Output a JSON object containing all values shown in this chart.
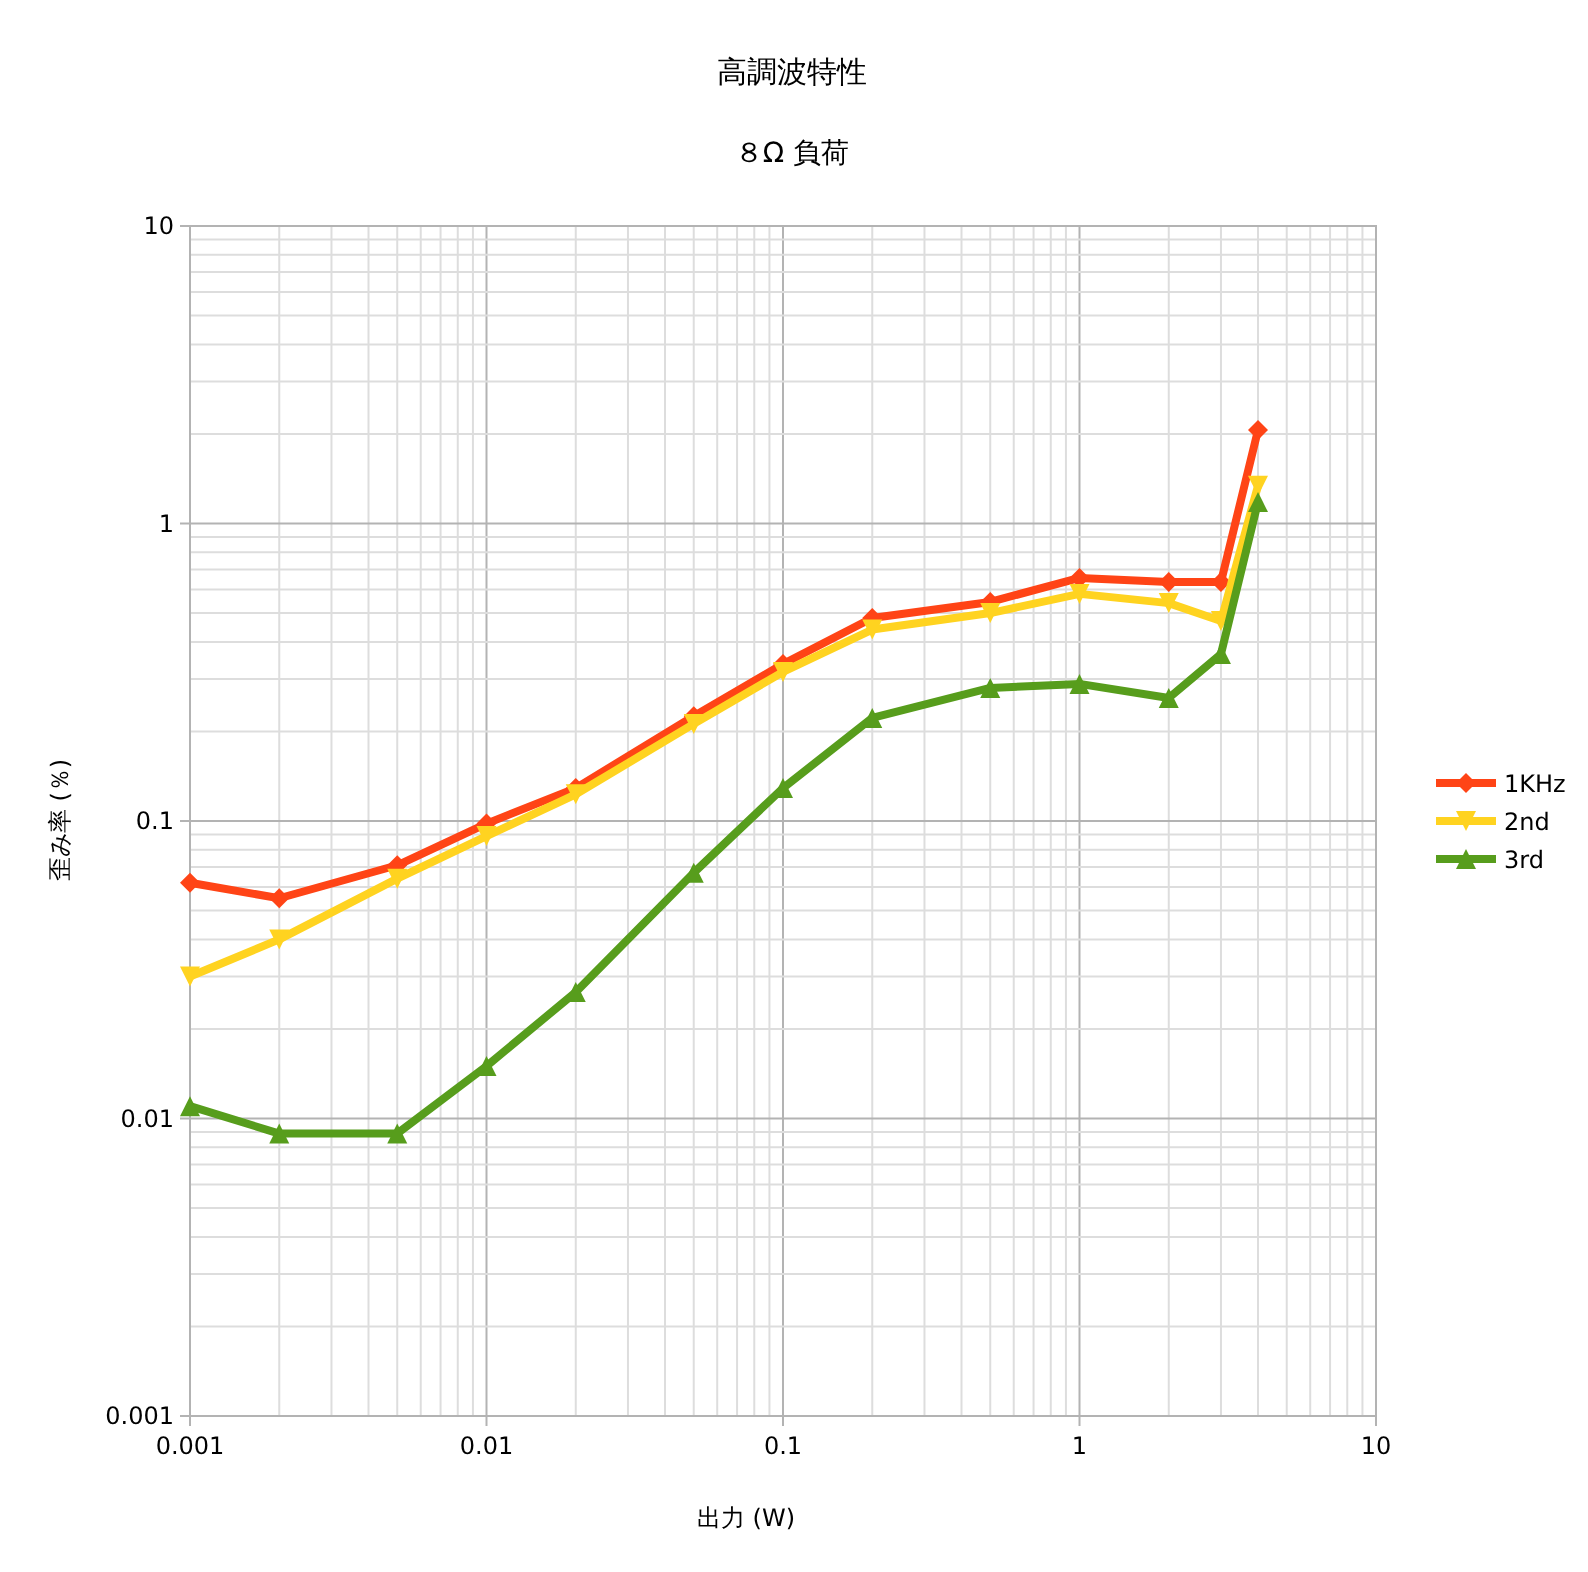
{
  "chart_data": {
    "type": "line",
    "title": "高調波特性",
    "subtitle": "８Ω 負荷",
    "xlabel": "出力 (W)",
    "ylabel": "歪み率 (％)",
    "x": [
      0.001,
      0.002,
      0.005,
      0.01,
      0.02,
      0.05,
      0.1,
      0.2,
      0.5,
      1,
      2,
      3,
      4
    ],
    "series": [
      {
        "name": "1KHz",
        "color": "#ff4416",
        "marker": "diamond",
        "values": [
          0.062,
          0.055,
          0.071,
          0.098,
          0.129,
          0.225,
          0.337,
          0.481,
          0.545,
          0.656,
          0.636,
          0.636,
          2.06
        ]
      },
      {
        "name": "2nd",
        "color": "#ffd320",
        "marker": "triangle-down",
        "values": [
          0.03,
          0.04,
          0.064,
          0.089,
          0.123,
          0.212,
          0.317,
          0.44,
          0.5,
          0.58,
          0.54,
          0.47,
          1.34
        ]
      },
      {
        "name": "3rd",
        "color": "#579d1c",
        "marker": "triangle",
        "values": [
          0.011,
          0.0089,
          0.0089,
          0.015,
          0.0266,
          0.067,
          0.129,
          0.222,
          0.28,
          0.289,
          0.259,
          0.364,
          1.18
        ]
      }
    ],
    "log": "xy",
    "xlim": [
      0.001,
      10
    ],
    "ylim": [
      0.001,
      10
    ],
    "xticks": [
      0.001,
      0.01,
      0.1,
      1,
      10
    ],
    "yticks": [
      0.001,
      0.01,
      0.1,
      1,
      10
    ],
    "grid": true,
    "legend": "right",
    "line_style": "solid"
  }
}
